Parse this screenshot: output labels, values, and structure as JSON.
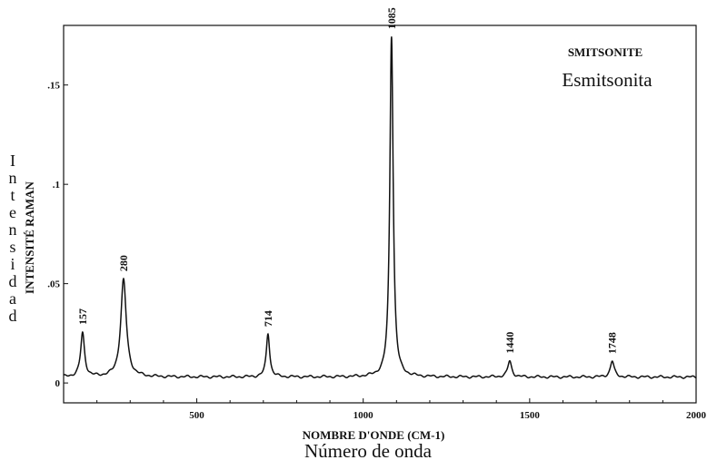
{
  "chart_data": {
    "type": "line",
    "title": "SMITSONITE",
    "subtitle": "Esmitsonita",
    "xlabel": "NOMBRE D'ONDE (CM-1)",
    "xlabel_translation": "Número de onda",
    "ylabel": "INTENSITÉ RAMAN",
    "ylabel_translation": "Intensidad",
    "xlim": [
      100,
      2000
    ],
    "ylim": [
      -0.01,
      0.18
    ],
    "x_ticks": [
      500,
      1000,
      1500,
      2000
    ],
    "x_tick_labels": [
      "500",
      "1000",
      "1500",
      "2000"
    ],
    "y_ticks": [
      0,
      0.05,
      0.1,
      0.15
    ],
    "y_tick_labels": [
      "0",
      ".05",
      ".1",
      ".15"
    ],
    "grid": false,
    "baseline": 0.003,
    "peaks": [
      {
        "x": 157,
        "height": 0.022,
        "width": 7,
        "label": "157"
      },
      {
        "x": 280,
        "height": 0.049,
        "width": 10,
        "label": "280"
      },
      {
        "x": 714,
        "height": 0.022,
        "width": 6,
        "label": "714"
      },
      {
        "x": 1085,
        "height": 0.172,
        "width": 6,
        "label": "1085"
      },
      {
        "x": 1440,
        "height": 0.008,
        "width": 7,
        "label": "1440"
      },
      {
        "x": 1748,
        "height": 0.008,
        "width": 7,
        "label": "1748"
      }
    ],
    "series": [
      {
        "color": "#111111"
      }
    ]
  }
}
